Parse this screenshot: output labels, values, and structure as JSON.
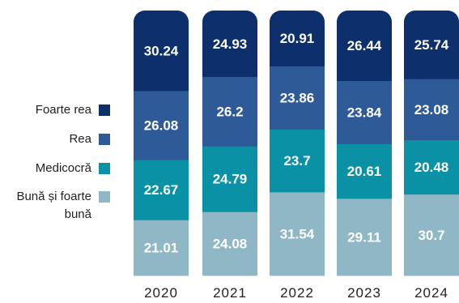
{
  "chart_data": {
    "type": "bar",
    "stacked": true,
    "normalized_to": 100,
    "categories": [
      "2020",
      "2021",
      "2022",
      "2023",
      "2024"
    ],
    "series": [
      {
        "name": "Bună și foarte bună",
        "color": "#8fb7c6",
        "values": [
          21.01,
          24.08,
          31.54,
          29.11,
          30.7
        ],
        "labels": [
          "21.01",
          "24.08",
          "31.54",
          "29.11",
          "30.7"
        ]
      },
      {
        "name": "Medicocră",
        "color": "#0a91a6",
        "values": [
          22.67,
          24.79,
          23.7,
          20.61,
          20.48
        ],
        "labels": [
          "22.67",
          "24.79",
          "23.7",
          "20.61",
          "20.48"
        ]
      },
      {
        "name": "Rea",
        "color": "#2f5a98",
        "values": [
          26.08,
          26.2,
          23.86,
          23.84,
          23.08
        ],
        "labels": [
          "26.08",
          "26.2",
          "23.86",
          "23.84",
          "23.08"
        ]
      },
      {
        "name": "Foarte rea",
        "color": "#0d2f6b",
        "values": [
          30.24,
          24.93,
          20.91,
          26.44,
          25.74
        ],
        "labels": [
          "30.24",
          "24.93",
          "20.91",
          "26.44",
          "25.74"
        ]
      }
    ],
    "legend_order": [
      "Foarte rea",
      "Rea",
      "Medicocră",
      "Bună și foarte bună"
    ],
    "legend_position": "left",
    "data_labels": true,
    "grid": false
  }
}
